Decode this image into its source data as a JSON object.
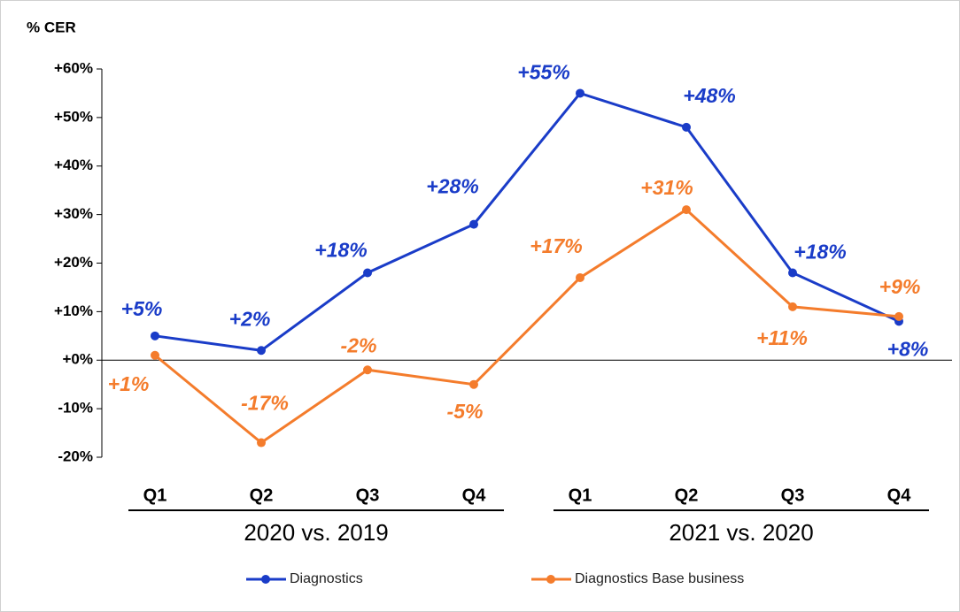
{
  "chart_data": {
    "type": "line",
    "y_axis_label": "% CER",
    "categories": [
      "Q1",
      "Q2",
      "Q3",
      "Q4",
      "Q1",
      "Q2",
      "Q3",
      "Q4"
    ],
    "category_groups": [
      "2020 vs. 2019",
      "2021 vs. 2020"
    ],
    "series": [
      {
        "name": "Diagnostics",
        "color": "#1a3cc8",
        "values": [
          5,
          2,
          18,
          28,
          55,
          48,
          18,
          8
        ],
        "value_labels": [
          "+5%",
          "+2%",
          "+18%",
          "+28%",
          "+55%",
          "+48%",
          "+18%",
          "+8%"
        ]
      },
      {
        "name": "Diagnostics Base business",
        "color": "#f47c2c",
        "values": [
          1,
          -17,
          -2,
          -5,
          17,
          31,
          11,
          9
        ],
        "value_labels": [
          "+1%",
          "-17%",
          "-2%",
          "-5%",
          "+17%",
          "+31%",
          "+11%",
          "+9%"
        ]
      }
    ],
    "ylim": [
      -20,
      60
    ],
    "yticks": [
      {
        "value": -20,
        "label": "-20%"
      },
      {
        "value": -10,
        "label": "-10%"
      },
      {
        "value": 0,
        "label": "+0%"
      },
      {
        "value": 10,
        "label": "+10%"
      },
      {
        "value": 20,
        "label": "+20%"
      },
      {
        "value": 30,
        "label": "+30%"
      },
      {
        "value": 40,
        "label": "+40%"
      },
      {
        "value": 50,
        "label": "+50%"
      },
      {
        "value": 60,
        "label": "+60%"
      }
    ],
    "legend": "bottom"
  }
}
